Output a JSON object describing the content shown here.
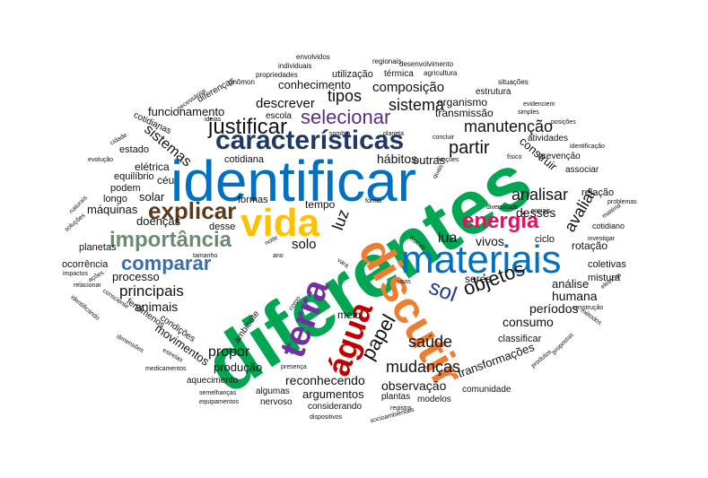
{
  "words": [
    {
      "text": "diferentes",
      "color": "#00A651",
      "weight": "bold"
    },
    {
      "text": "identificar",
      "color": "#0070C0",
      "weight": "normal"
    },
    {
      "text": "características",
      "color": "#1F3864",
      "weight": "bold"
    },
    {
      "text": "materiais",
      "color": "#0070C0",
      "weight": "normal"
    },
    {
      "text": "discutir",
      "color": "#ED7D31",
      "weight": "bold"
    },
    {
      "text": "vida",
      "color": "#FFC000",
      "weight": "bold"
    },
    {
      "text": "terra",
      "color": "#7030A0",
      "weight": "bold"
    },
    {
      "text": "água",
      "color": "#C00000",
      "weight": "bold"
    },
    {
      "text": "explicar",
      "color": "#5A3A1A",
      "weight": "bold"
    },
    {
      "text": "justificar",
      "color": "#111111",
      "weight": "normal"
    },
    {
      "text": "importância",
      "color": "#6D8B74",
      "weight": "bold"
    },
    {
      "text": "energia",
      "color": "#E0115F",
      "weight": "bold"
    },
    {
      "text": "comparar",
      "color": "#3B6DA8",
      "weight": "bold"
    },
    {
      "text": "selecionar",
      "color": "#5B2C83",
      "weight": "normal"
    },
    {
      "text": "objetos",
      "color": "#111111",
      "weight": "normal"
    },
    {
      "text": "papel",
      "color": "#111111",
      "weight": "normal"
    },
    {
      "text": "sol",
      "color": "#1F3A93",
      "weight": "normal"
    },
    {
      "text": "partir",
      "color": "#111111",
      "weight": "normal"
    },
    {
      "text": "sistema",
      "color": "#111111",
      "weight": "normal"
    },
    {
      "text": "manutenção",
      "color": "#111111",
      "weight": "normal"
    },
    {
      "text": "saúde",
      "color": "#111111",
      "weight": "normal"
    },
    {
      "text": "mudanças",
      "color": "#111111",
      "weight": "normal"
    },
    {
      "text": "principais",
      "color": "#111111",
      "weight": "normal"
    },
    {
      "text": "luz",
      "color": "#111111",
      "weight": "normal"
    },
    {
      "text": "analisar",
      "color": "#111111",
      "weight": "normal"
    },
    {
      "text": "avaliar",
      "color": "#111111",
      "weight": "normal"
    },
    {
      "text": "composição",
      "color": "#111111",
      "weight": "normal"
    },
    {
      "text": "tipos",
      "color": "#111111",
      "weight": "normal"
    },
    {
      "text": "descrever",
      "color": "#111111",
      "weight": "normal"
    },
    {
      "text": "sistemas",
      "color": "#111111",
      "weight": "normal"
    },
    {
      "text": "lua",
      "color": "#111111",
      "weight": "normal"
    },
    {
      "text": "solo",
      "color": "#111111",
      "weight": "normal"
    },
    {
      "text": "vivos",
      "color": "#111111",
      "weight": "normal"
    },
    {
      "text": "desses",
      "color": "#111111",
      "weight": "normal"
    },
    {
      "text": "humana",
      "color": "#111111",
      "weight": "normal"
    },
    {
      "text": "períodos",
      "color": "#111111",
      "weight": "normal"
    },
    {
      "text": "consumo",
      "color": "#111111",
      "weight": "normal"
    },
    {
      "text": "observação",
      "color": "#111111",
      "weight": "normal"
    },
    {
      "text": "reconhecendo",
      "color": "#111111",
      "weight": "normal"
    },
    {
      "text": "transformações",
      "color": "#111111",
      "weight": "normal"
    },
    {
      "text": "propor",
      "color": "#111111",
      "weight": "normal"
    },
    {
      "text": "produção",
      "color": "#111111",
      "weight": "normal"
    },
    {
      "text": "movimentos",
      "color": "#111111",
      "weight": "normal"
    },
    {
      "text": "animais",
      "color": "#111111",
      "weight": "normal"
    },
    {
      "text": "processo",
      "color": "#111111",
      "weight": "normal"
    },
    {
      "text": "máquinas",
      "color": "#111111",
      "weight": "normal"
    },
    {
      "text": "solar",
      "color": "#111111",
      "weight": "normal"
    },
    {
      "text": "doenças",
      "color": "#111111",
      "weight": "normal"
    },
    {
      "text": "funcionamento",
      "color": "#111111",
      "weight": "normal"
    },
    {
      "text": "conhecimento",
      "color": "#111111",
      "weight": "normal"
    },
    {
      "text": "cotidiana",
      "color": "#111111",
      "weight": "normal"
    },
    {
      "text": "hábitos",
      "color": "#111111",
      "weight": "normal"
    },
    {
      "text": "outras",
      "color": "#111111",
      "weight": "normal"
    },
    {
      "text": "construir",
      "color": "#111111",
      "weight": "normal"
    },
    {
      "text": "análise",
      "color": "#111111",
      "weight": "normal"
    },
    {
      "text": "argumentos",
      "color": "#111111",
      "weight": "normal"
    },
    {
      "text": "seres",
      "color": "#111111",
      "weight": "normal"
    },
    {
      "text": "organismo",
      "color": "#111111",
      "weight": "normal"
    },
    {
      "text": "transmissão",
      "color": "#111111",
      "weight": "normal"
    },
    {
      "text": "elétrica",
      "color": "#111111",
      "weight": "normal"
    },
    {
      "text": "céu",
      "color": "#111111",
      "weight": "normal"
    },
    {
      "text": "formas",
      "color": "#111111",
      "weight": "normal"
    },
    {
      "text": "tempo",
      "color": "#111111",
      "weight": "normal"
    },
    {
      "text": "desse",
      "color": "#111111",
      "weight": "normal"
    },
    {
      "text": "meio",
      "color": "#111111",
      "weight": "normal"
    },
    {
      "text": "rotação",
      "color": "#111111",
      "weight": "normal"
    },
    {
      "text": "ciclo",
      "color": "#111111",
      "weight": "normal"
    },
    {
      "text": "classificar",
      "color": "#111111",
      "weight": "normal"
    },
    {
      "text": "mistura",
      "color": "#111111",
      "weight": "normal"
    },
    {
      "text": "coletivas",
      "color": "#111111",
      "weight": "normal"
    },
    {
      "text": "relação",
      "color": "#111111",
      "weight": "normal"
    },
    {
      "text": "planetas",
      "color": "#111111",
      "weight": "normal"
    },
    {
      "text": "ocorrência",
      "color": "#111111",
      "weight": "normal"
    },
    {
      "text": "longo",
      "color": "#111111",
      "weight": "normal"
    },
    {
      "text": "podem",
      "color": "#111111",
      "weight": "normal"
    },
    {
      "text": "equilíbrio",
      "color": "#111111",
      "weight": "normal"
    },
    {
      "text": "estado",
      "color": "#111111",
      "weight": "normal"
    },
    {
      "text": "escola",
      "color": "#111111",
      "weight": "normal"
    },
    {
      "text": "utilização",
      "color": "#111111",
      "weight": "normal"
    },
    {
      "text": "térmica",
      "color": "#111111",
      "weight": "normal"
    },
    {
      "text": "estrutura",
      "color": "#111111",
      "weight": "normal"
    },
    {
      "text": "atividades",
      "color": "#111111",
      "weight": "normal"
    },
    {
      "text": "prevenção",
      "color": "#111111",
      "weight": "normal"
    },
    {
      "text": "associar",
      "color": "#111111",
      "weight": "normal"
    },
    {
      "text": "cotidiano",
      "color": "#111111",
      "weight": "normal"
    },
    {
      "text": "condições",
      "color": "#111111",
      "weight": "normal"
    },
    {
      "text": "aquecimento",
      "color": "#111111",
      "weight": "normal"
    },
    {
      "text": "algumas",
      "color": "#111111",
      "weight": "normal"
    },
    {
      "text": "nervoso",
      "color": "#111111",
      "weight": "normal"
    },
    {
      "text": "considerando",
      "color": "#111111",
      "weight": "normal"
    },
    {
      "text": "plantas",
      "color": "#111111",
      "weight": "normal"
    },
    {
      "text": "modelos",
      "color": "#111111",
      "weight": "normal"
    },
    {
      "text": "comunidade",
      "color": "#111111",
      "weight": "normal"
    },
    {
      "text": "fenômenos",
      "color": "#111111",
      "weight": "normal"
    },
    {
      "text": "diferenças",
      "color": "#111111",
      "weight": "normal"
    },
    {
      "text": "cotidianas",
      "color": "#111111",
      "weight": "normal"
    },
    {
      "text": "ambiente",
      "color": "#111111",
      "weight": "normal"
    },
    {
      "text": "envolvidos",
      "color": "#111111",
      "weight": "normal"
    },
    {
      "text": "individuais",
      "color": "#111111",
      "weight": "normal"
    },
    {
      "text": "propriedades",
      "color": "#111111",
      "weight": "normal"
    },
    {
      "text": "regionais",
      "color": "#111111",
      "weight": "normal"
    },
    {
      "text": "desenvolvimento",
      "color": "#111111",
      "weight": "normal"
    },
    {
      "text": "agricultura",
      "color": "#111111",
      "weight": "normal"
    },
    {
      "text": "situações",
      "color": "#111111",
      "weight": "normal"
    },
    {
      "text": "gnômon",
      "color": "#111111",
      "weight": "normal"
    },
    {
      "text": "necessários",
      "color": "#111111",
      "weight": "normal"
    },
    {
      "text": "ideias",
      "color": "#111111",
      "weight": "normal"
    },
    {
      "text": "sombra",
      "color": "#111111",
      "weight": "normal"
    },
    {
      "text": "planeta",
      "color": "#111111",
      "weight": "normal"
    },
    {
      "text": "concluir",
      "color": "#111111",
      "weight": "normal"
    },
    {
      "text": "evidenciem",
      "color": "#111111",
      "weight": "normal"
    },
    {
      "text": "simples",
      "color": "#111111",
      "weight": "normal"
    },
    {
      "text": "posições",
      "color": "#111111",
      "weight": "normal"
    },
    {
      "text": "identificação",
      "color": "#111111",
      "weight": "normal"
    },
    {
      "text": "cidade",
      "color": "#111111",
      "weight": "normal"
    },
    {
      "text": "evolução",
      "color": "#111111",
      "weight": "normal"
    },
    {
      "text": "funções",
      "color": "#111111",
      "weight": "normal"
    },
    {
      "text": "físico",
      "color": "#111111",
      "weight": "normal"
    },
    {
      "text": "quais",
      "color": "#111111",
      "weight": "normal"
    },
    {
      "text": "naturais",
      "color": "#111111",
      "weight": "normal"
    },
    {
      "text": "soluções",
      "color": "#111111",
      "weight": "normal"
    },
    {
      "text": "tamanho",
      "color": "#111111",
      "weight": "normal"
    },
    {
      "text": "noite",
      "color": "#111111",
      "weight": "normal"
    },
    {
      "text": "ano",
      "color": "#111111",
      "weight": "normal"
    },
    {
      "text": "forma",
      "color": "#111111",
      "weight": "normal"
    },
    {
      "text": "diversidade",
      "color": "#111111",
      "weight": "normal"
    },
    {
      "text": "sociais",
      "color": "#111111",
      "weight": "normal"
    },
    {
      "text": "problemas",
      "color": "#111111",
      "weight": "normal"
    },
    {
      "text": "matéria",
      "color": "#111111",
      "weight": "normal"
    },
    {
      "text": "investigar",
      "color": "#111111",
      "weight": "normal"
    },
    {
      "text": "físicas",
      "color": "#111111",
      "weight": "normal"
    },
    {
      "text": "vara",
      "color": "#111111",
      "weight": "normal"
    },
    {
      "text": "usos",
      "color": "#111111",
      "weight": "normal"
    },
    {
      "text": "impactos",
      "color": "#111111",
      "weight": "normal"
    },
    {
      "text": "relacionar",
      "color": "#111111",
      "weight": "normal"
    },
    {
      "text": "ações",
      "color": "#111111",
      "weight": "normal"
    },
    {
      "text": "consciente",
      "color": "#111111",
      "weight": "normal"
    },
    {
      "text": "identificando",
      "color": "#111111",
      "weight": "normal"
    },
    {
      "text": "corpo",
      "color": "#111111",
      "weight": "normal"
    },
    {
      "text": "elétricos",
      "color": "#111111",
      "weight": "normal"
    },
    {
      "text": "construção",
      "color": "#111111",
      "weight": "normal"
    },
    {
      "text": "métodos",
      "color": "#111111",
      "weight": "normal"
    },
    {
      "text": "dimensões",
      "color": "#111111",
      "weight": "normal"
    },
    {
      "text": "estrelas",
      "color": "#111111",
      "weight": "normal"
    },
    {
      "text": "medicamentos",
      "color": "#111111",
      "weight": "normal"
    },
    {
      "text": "presença",
      "color": "#111111",
      "weight": "normal"
    },
    {
      "text": "produtos",
      "color": "#111111",
      "weight": "normal"
    },
    {
      "text": "propostas",
      "color": "#111111",
      "weight": "normal"
    },
    {
      "text": "semelhanças",
      "color": "#111111",
      "weight": "normal"
    },
    {
      "text": "equipamentos",
      "color": "#111111",
      "weight": "normal"
    },
    {
      "text": "dispositivos",
      "color": "#111111",
      "weight": "normal"
    },
    {
      "text": "registro",
      "color": "#111111",
      "weight": "normal"
    },
    {
      "text": "socioambientais",
      "color": "#111111",
      "weight": "normal"
    }
  ]
}
